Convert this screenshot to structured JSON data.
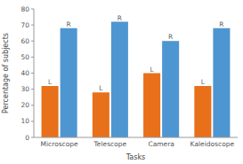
{
  "chart_data": {
    "type": "bar",
    "categories": [
      "Microscope",
      "Telescope",
      "Camera",
      "Kaleidoscope"
    ],
    "series": [
      {
        "name": "L",
        "color": "#E8701A",
        "values": [
          32,
          28,
          40,
          32
        ]
      },
      {
        "name": "R",
        "color": "#4E96D1",
        "values": [
          68,
          72,
          60,
          68
        ]
      }
    ],
    "xlabel": "Tasks",
    "ylabel": "Percentage of subjects",
    "ylim": [
      0,
      80
    ],
    "yticks": [
      0,
      10,
      20,
      30,
      40,
      50,
      60,
      70,
      80
    ],
    "grid": false
  }
}
